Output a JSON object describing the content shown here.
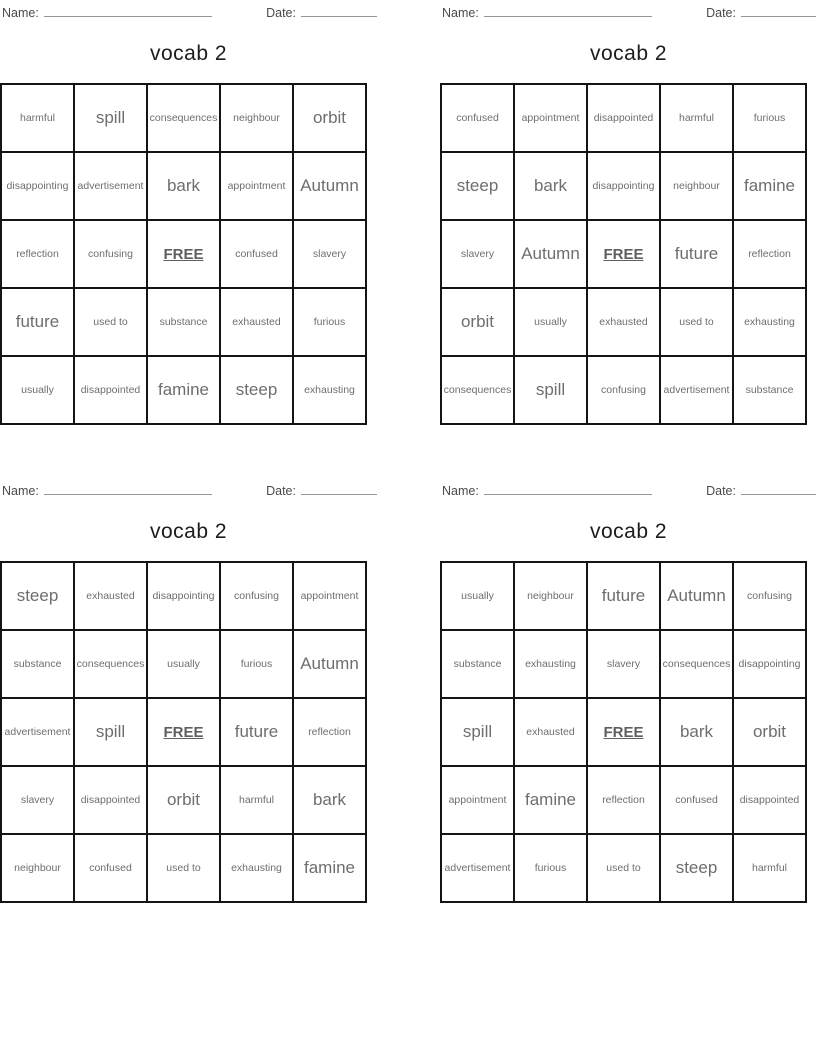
{
  "page": {
    "name_label": "Name:",
    "date_label": "Date:",
    "card_title": "vocab 2",
    "free_label": "FREE"
  },
  "colors": {
    "grid_border": "#141414",
    "cell_text": "#6e6e6e",
    "title_text": "#1c1c1c",
    "label_text": "#4a4a4a",
    "blank_line": "#979797",
    "background": "#ffffff"
  },
  "cards": [
    {
      "cells": [
        {
          "t": "harmful",
          "s": "s"
        },
        {
          "t": "spill",
          "s": "l"
        },
        {
          "t": "consequences",
          "s": "s"
        },
        {
          "t": "neighbour",
          "s": "s"
        },
        {
          "t": "orbit",
          "s": "l"
        },
        {
          "t": "disappointing",
          "s": "s"
        },
        {
          "t": "advertisement",
          "s": "s"
        },
        {
          "t": "bark",
          "s": "l"
        },
        {
          "t": "appointment",
          "s": "s"
        },
        {
          "t": "Autumn",
          "s": "l"
        },
        {
          "t": "reflection",
          "s": "s"
        },
        {
          "t": "confusing",
          "s": "s"
        },
        {
          "t": "FREE",
          "s": "f"
        },
        {
          "t": "confused",
          "s": "s"
        },
        {
          "t": "slavery",
          "s": "s"
        },
        {
          "t": "future",
          "s": "l"
        },
        {
          "t": "used to",
          "s": "s"
        },
        {
          "t": "substance",
          "s": "s"
        },
        {
          "t": "exhausted",
          "s": "s"
        },
        {
          "t": "furious",
          "s": "s"
        },
        {
          "t": "usually",
          "s": "s"
        },
        {
          "t": "disappointed",
          "s": "s"
        },
        {
          "t": "famine",
          "s": "l"
        },
        {
          "t": "steep",
          "s": "l"
        },
        {
          "t": "exhausting",
          "s": "s"
        }
      ]
    },
    {
      "cells": [
        {
          "t": "confused",
          "s": "s"
        },
        {
          "t": "appointment",
          "s": "s"
        },
        {
          "t": "disappointed",
          "s": "s"
        },
        {
          "t": "harmful",
          "s": "s"
        },
        {
          "t": "furious",
          "s": "s"
        },
        {
          "t": "steep",
          "s": "l"
        },
        {
          "t": "bark",
          "s": "l"
        },
        {
          "t": "disappointing",
          "s": "s"
        },
        {
          "t": "neighbour",
          "s": "s"
        },
        {
          "t": "famine",
          "s": "l"
        },
        {
          "t": "slavery",
          "s": "s"
        },
        {
          "t": "Autumn",
          "s": "l"
        },
        {
          "t": "FREE",
          "s": "f"
        },
        {
          "t": "future",
          "s": "l"
        },
        {
          "t": "reflection",
          "s": "s"
        },
        {
          "t": "orbit",
          "s": "l"
        },
        {
          "t": "usually",
          "s": "s"
        },
        {
          "t": "exhausted",
          "s": "s"
        },
        {
          "t": "used to",
          "s": "s"
        },
        {
          "t": "exhausting",
          "s": "s"
        },
        {
          "t": "consequences",
          "s": "s"
        },
        {
          "t": "spill",
          "s": "l"
        },
        {
          "t": "confusing",
          "s": "s"
        },
        {
          "t": "advertisement",
          "s": "s"
        },
        {
          "t": "substance",
          "s": "s"
        }
      ]
    },
    {
      "cells": [
        {
          "t": "steep",
          "s": "l"
        },
        {
          "t": "exhausted",
          "s": "s"
        },
        {
          "t": "disappointing",
          "s": "s"
        },
        {
          "t": "confusing",
          "s": "s"
        },
        {
          "t": "appointment",
          "s": "s"
        },
        {
          "t": "substance",
          "s": "s"
        },
        {
          "t": "consequences",
          "s": "s"
        },
        {
          "t": "usually",
          "s": "s"
        },
        {
          "t": "furious",
          "s": "s"
        },
        {
          "t": "Autumn",
          "s": "l"
        },
        {
          "t": "advertisement",
          "s": "s"
        },
        {
          "t": "spill",
          "s": "l"
        },
        {
          "t": "FREE",
          "s": "f"
        },
        {
          "t": "future",
          "s": "l"
        },
        {
          "t": "reflection",
          "s": "s"
        },
        {
          "t": "slavery",
          "s": "s"
        },
        {
          "t": "disappointed",
          "s": "s"
        },
        {
          "t": "orbit",
          "s": "l"
        },
        {
          "t": "harmful",
          "s": "s"
        },
        {
          "t": "bark",
          "s": "l"
        },
        {
          "t": "neighbour",
          "s": "s"
        },
        {
          "t": "confused",
          "s": "s"
        },
        {
          "t": "used to",
          "s": "s"
        },
        {
          "t": "exhausting",
          "s": "s"
        },
        {
          "t": "famine",
          "s": "l"
        }
      ]
    },
    {
      "cells": [
        {
          "t": "usually",
          "s": "s"
        },
        {
          "t": "neighbour",
          "s": "s"
        },
        {
          "t": "future",
          "s": "l"
        },
        {
          "t": "Autumn",
          "s": "l"
        },
        {
          "t": "confusing",
          "s": "s"
        },
        {
          "t": "substance",
          "s": "s"
        },
        {
          "t": "exhausting",
          "s": "s"
        },
        {
          "t": "slavery",
          "s": "s"
        },
        {
          "t": "consequences",
          "s": "s"
        },
        {
          "t": "disappointing",
          "s": "s"
        },
        {
          "t": "spill",
          "s": "l"
        },
        {
          "t": "exhausted",
          "s": "s"
        },
        {
          "t": "FREE",
          "s": "f"
        },
        {
          "t": "bark",
          "s": "l"
        },
        {
          "t": "orbit",
          "s": "l"
        },
        {
          "t": "appointment",
          "s": "s"
        },
        {
          "t": "famine",
          "s": "l"
        },
        {
          "t": "reflection",
          "s": "s"
        },
        {
          "t": "confused",
          "s": "s"
        },
        {
          "t": "disappointed",
          "s": "s"
        },
        {
          "t": "advertisement",
          "s": "s"
        },
        {
          "t": "furious",
          "s": "s"
        },
        {
          "t": "used to",
          "s": "s"
        },
        {
          "t": "steep",
          "s": "l"
        },
        {
          "t": "harmful",
          "s": "s"
        }
      ]
    }
  ]
}
